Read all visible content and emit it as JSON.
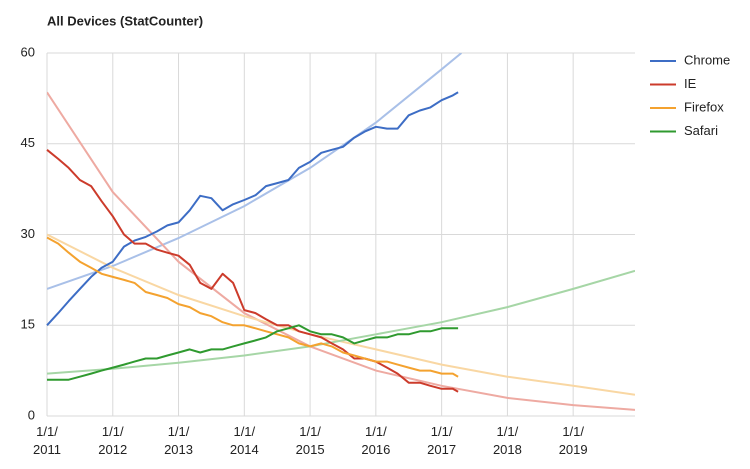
{
  "chart_data": {
    "type": "line",
    "title": "All Devices (StatCounter)",
    "x": [
      2011,
      2011.17,
      2011.33,
      2011.5,
      2011.67,
      2011.83,
      2012,
      2012.17,
      2012.33,
      2012.5,
      2012.67,
      2012.83,
      2013,
      2013.17,
      2013.33,
      2013.5,
      2013.67,
      2013.83,
      2014,
      2014.17,
      2014.33,
      2014.5,
      2014.67,
      2014.83,
      2015,
      2015.17,
      2015.33,
      2015.5,
      2015.67,
      2015.83,
      2016,
      2016.17,
      2016.33,
      2016.5,
      2016.67,
      2016.83,
      2017,
      2017.17,
      2017.25
    ],
    "series": [
      {
        "name": "Chrome",
        "color": "#3d6dc5",
        "trend_color": "#a9c0e8",
        "values": [
          15,
          17,
          19,
          21,
          23,
          24.5,
          25.5,
          28,
          29,
          29.6,
          30.5,
          31.5,
          32,
          34,
          36.4,
          36,
          34,
          35,
          35.7,
          36.5,
          38,
          38.5,
          39,
          41,
          42,
          43.5,
          44,
          44.5,
          46,
          47,
          47.8,
          47.5,
          47.5,
          49.7,
          50.5,
          51,
          52.2,
          53,
          53.5
        ],
        "trend": {
          "x": [
            2011,
            2012,
            2013,
            2014,
            2015,
            2016,
            2017,
            2017.3
          ],
          "values": [
            21,
            24.8,
            29.4,
            34.7,
            41,
            48.5,
            57.3,
            60
          ]
        }
      },
      {
        "name": "IE",
        "color": "#cc3b2b",
        "trend_color": "#eeaaa2",
        "values": [
          44,
          42.5,
          41,
          39,
          38,
          35.5,
          33,
          30,
          28.5,
          28.5,
          27.5,
          27,
          26.5,
          25,
          22,
          21,
          23.5,
          22,
          17.5,
          17,
          16,
          15,
          15,
          14,
          13.5,
          13,
          12,
          11,
          9.5,
          9.5,
          9,
          8,
          7,
          5.5,
          5.5,
          5,
          4.5,
          4.5,
          4
        ],
        "trend": {
          "x": [
            2011,
            2012,
            2013,
            2014,
            2015,
            2016,
            2017,
            2018,
            2019,
            2019.94
          ],
          "values": [
            53.5,
            37,
            25.5,
            17,
            11.5,
            7.5,
            5,
            3,
            1.8,
            1
          ]
        }
      },
      {
        "name": "Firefox",
        "color": "#f4a22f",
        "trend_color": "#f9d7a3",
        "values": [
          29.5,
          28.5,
          27,
          25.5,
          24.5,
          23.5,
          23,
          22.5,
          22,
          20.5,
          20,
          19.5,
          18.5,
          18,
          17,
          16.5,
          15.5,
          15,
          15,
          14.5,
          14,
          13.5,
          13,
          12,
          11.5,
          12,
          11.5,
          10.5,
          10,
          9.5,
          9,
          9,
          8.5,
          8,
          7.5,
          7.5,
          7,
          7,
          6.5
        ],
        "trend": {
          "x": [
            2011,
            2012,
            2013,
            2014,
            2015,
            2016,
            2017,
            2018,
            2019,
            2019.94
          ],
          "values": [
            30,
            24.5,
            20,
            16.5,
            13.5,
            11,
            8.5,
            6.5,
            5,
            3.5
          ]
        }
      },
      {
        "name": "Safari",
        "color": "#2f9a2f",
        "trend_color": "#a6d6a6",
        "values": [
          6,
          6,
          6,
          6.5,
          7,
          7.5,
          8,
          8.5,
          9,
          9.5,
          9.5,
          10,
          10.5,
          11,
          10.5,
          11,
          11,
          11.5,
          12,
          12.5,
          13,
          14,
          14.5,
          15,
          14,
          13.5,
          13.5,
          13,
          12,
          12.5,
          13,
          13,
          13.5,
          13.5,
          14,
          14,
          14.5,
          14.5,
          14.5
        ],
        "trend": {
          "x": [
            2011,
            2012,
            2013,
            2014,
            2015,
            2016,
            2017,
            2018,
            2019,
            2019.94
          ],
          "values": [
            7,
            7.8,
            8.8,
            10,
            11.5,
            13.5,
            15.5,
            18,
            21,
            24
          ]
        }
      }
    ],
    "xlim": [
      2011,
      2019.94
    ],
    "xticks": [
      {
        "value": 2011,
        "label": "1/1/\n2011"
      },
      {
        "value": 2012,
        "label": "1/1/\n2012"
      },
      {
        "value": 2013,
        "label": "1/1/\n2013"
      },
      {
        "value": 2014,
        "label": "1/1/\n2014"
      },
      {
        "value": 2015,
        "label": "1/1/\n2015"
      },
      {
        "value": 2016,
        "label": "1/1/\n2016"
      },
      {
        "value": 2017,
        "label": "1/1/\n2017"
      },
      {
        "value": 2018,
        "label": "1/1/\n2018"
      },
      {
        "value": 2019,
        "label": "1/1/\n2019"
      }
    ],
    "ylim": [
      0,
      60
    ],
    "yticks": [
      0,
      15,
      30,
      45,
      60
    ],
    "grid": true,
    "legend": "right"
  }
}
